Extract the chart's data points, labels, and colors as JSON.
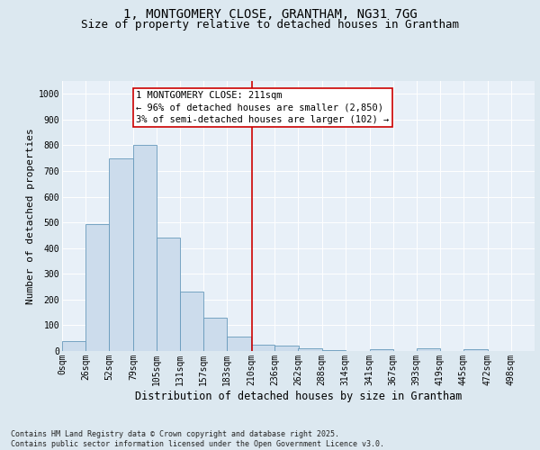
{
  "title_line1": "1, MONTGOMERY CLOSE, GRANTHAM, NG31 7GG",
  "title_line2": "Size of property relative to detached houses in Grantham",
  "xlabel": "Distribution of detached houses by size in Grantham",
  "ylabel": "Number of detached properties",
  "footnote": "Contains HM Land Registry data © Crown copyright and database right 2025.\nContains public sector information licensed under the Open Government Licence v3.0.",
  "annotation_line1": "1 MONTGOMERY CLOSE: 211sqm",
  "annotation_line2": "← 96% of detached houses are smaller (2,850)",
  "annotation_line3": "3% of semi-detached houses are larger (102) →",
  "bar_edges": [
    0,
    26,
    52,
    79,
    105,
    131,
    157,
    183,
    210,
    236,
    262,
    288,
    314,
    341,
    367,
    393,
    419,
    445,
    472,
    498,
    524
  ],
  "bar_heights": [
    40,
    495,
    750,
    800,
    440,
    230,
    130,
    55,
    25,
    20,
    12,
    5,
    0,
    7,
    0,
    12,
    0,
    7,
    0,
    0
  ],
  "bar_color": "#ccdcec",
  "bar_edge_color": "#6699bb",
  "vline_x": 211,
  "vline_color": "#cc0000",
  "annotation_box_color": "#cc0000",
  "annotation_text_color": "#000000",
  "ylim_max": 1050,
  "yticks": [
    0,
    100,
    200,
    300,
    400,
    500,
    600,
    700,
    800,
    900,
    1000
  ],
  "bg_color": "#dce8f0",
  "plot_bg_color": "#e8f0f8",
  "grid_color": "#ffffff",
  "title1_fontsize": 10,
  "title2_fontsize": 9,
  "axis_label_fontsize": 8,
  "tick_fontsize": 7,
  "annotation_fontsize": 7.5,
  "footnote_fontsize": 6
}
